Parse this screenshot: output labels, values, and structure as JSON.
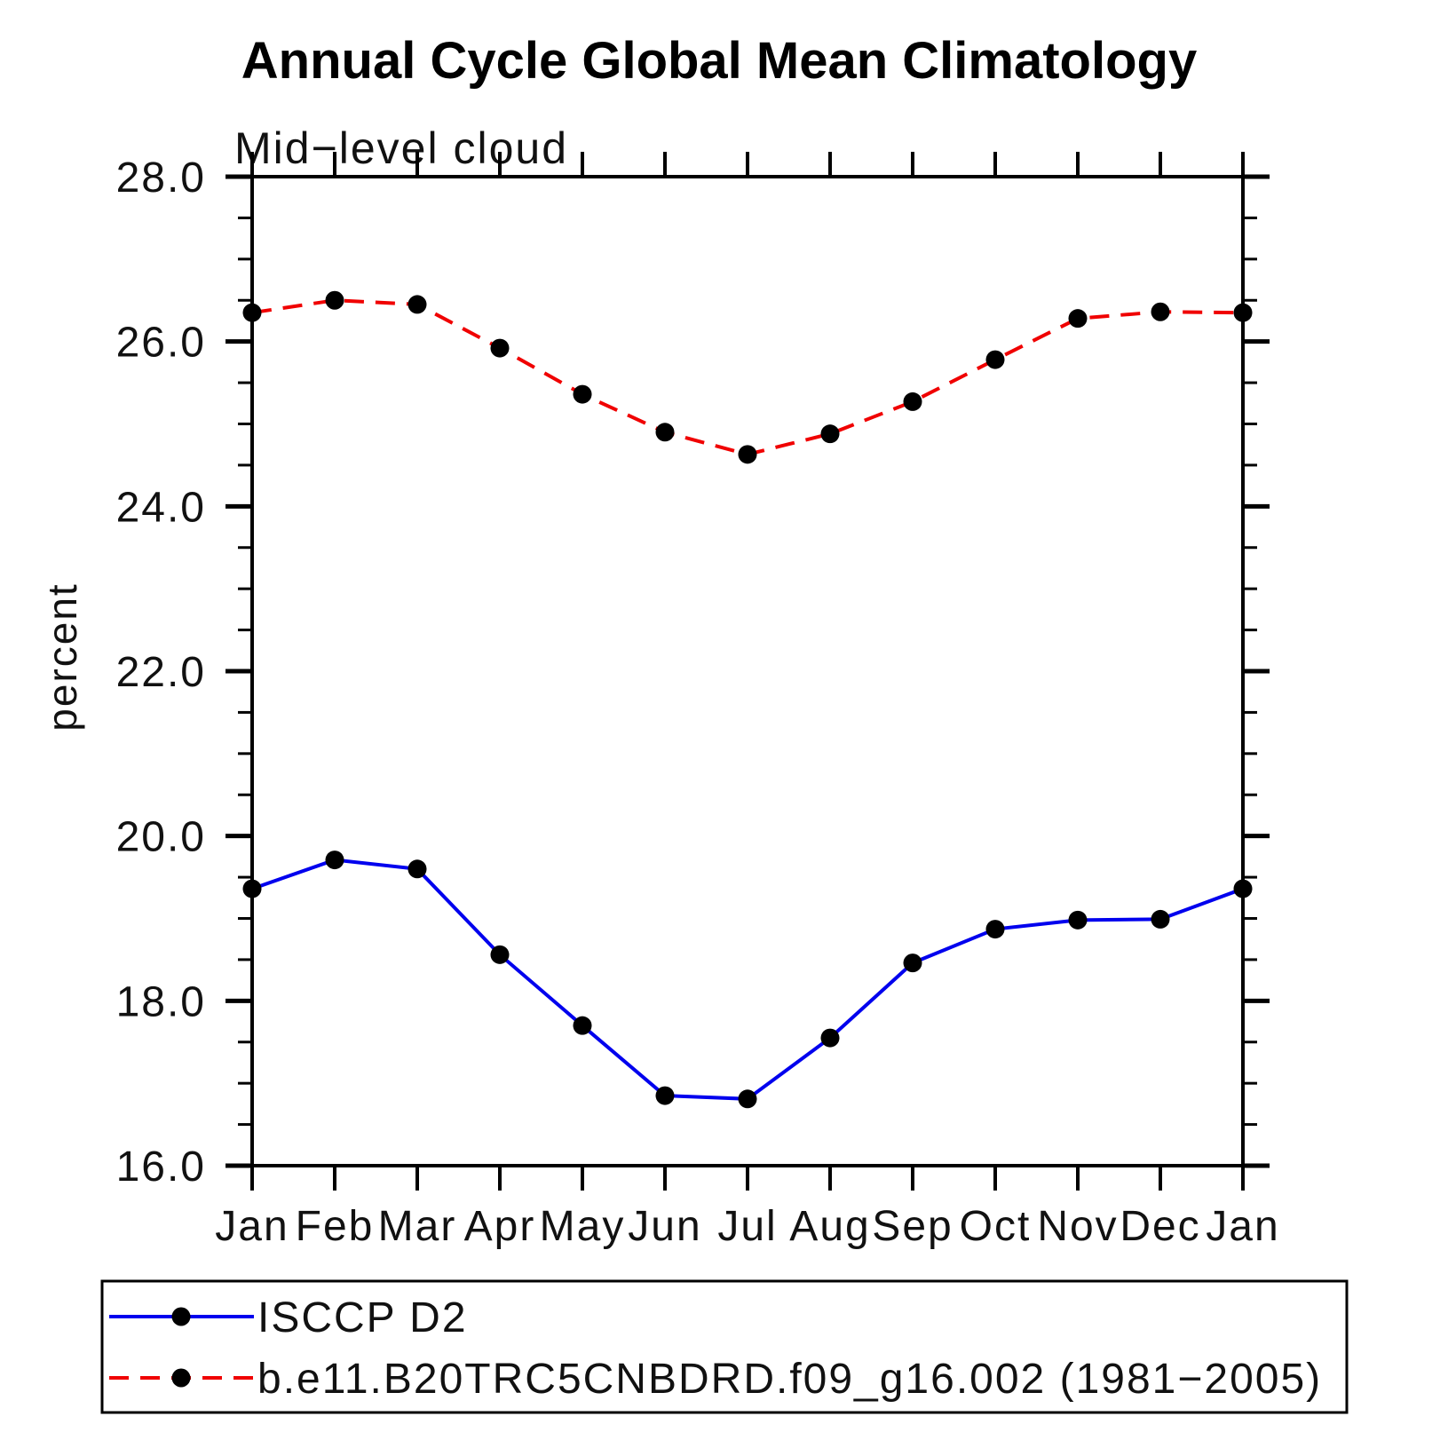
{
  "title": "Annual Cycle Global Mean Climatology",
  "subtitle": "Mid−level cloud",
  "y_axis_label": "percent",
  "chart_data": {
    "type": "line",
    "x_categories": [
      "Jan",
      "Feb",
      "Mar",
      "Apr",
      "May",
      "Jun",
      "Jul",
      "Aug",
      "Sep",
      "Oct",
      "Nov",
      "Dec",
      "Jan"
    ],
    "ylim": [
      16.0,
      28.0
    ],
    "y_major_ticks": [
      16.0,
      18.0,
      20.0,
      22.0,
      24.0,
      26.0,
      28.0
    ],
    "y_major_tick_labels": [
      "16.0",
      "18.0",
      "20.0",
      "22.0",
      "24.0",
      "26.0",
      "28.0"
    ],
    "y_minor_tick_interval": 0.5,
    "grid": "off",
    "legend_position": "boxed-below-plot",
    "marker": "filled-circle",
    "marker_color": "#000000",
    "axis_color": "#000000",
    "series": [
      {
        "name": "ISCCP D2",
        "color": "#0000ee",
        "line_style": "solid",
        "values": [
          19.36,
          19.71,
          19.6,
          18.56,
          17.7,
          16.85,
          16.81,
          17.55,
          18.46,
          18.87,
          18.98,
          18.99,
          19.36
        ]
      },
      {
        "name": "b.e11.B20TRC5CNBDRD.f09_g16.002 (1981−2005)",
        "color": "#f00000",
        "line_style": "dashed",
        "values": [
          26.35,
          26.5,
          26.45,
          25.92,
          25.36,
          24.9,
          24.63,
          24.88,
          25.27,
          25.78,
          26.28,
          26.36,
          26.35
        ]
      }
    ]
  }
}
